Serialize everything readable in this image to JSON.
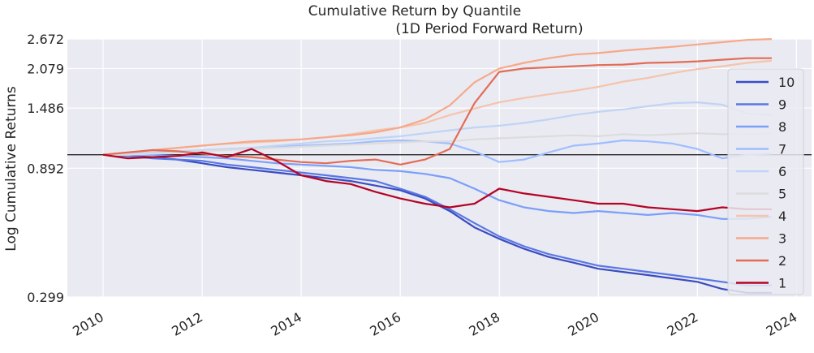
{
  "chart_data": {
    "type": "line",
    "title": "Cumulative Return by Quantile",
    "subtitle": "(1D Period Forward Return)",
    "ylabel": "Log Cumulative Returns",
    "xlabel": "",
    "y_scale": "log",
    "ylim": [
      0.299,
      2.672
    ],
    "xlim": [
      2010.0,
      2023.6
    ],
    "y_ticks": [
      "2.672",
      "2.079",
      "1.486",
      "0.892",
      "0.299"
    ],
    "y_tick_values": [
      2.672,
      2.079,
      1.486,
      0.892,
      0.299
    ],
    "x_ticks": [
      "2010",
      "2012",
      "2014",
      "2016",
      "2018",
      "2020",
      "2022",
      "2024"
    ],
    "x_tick_values": [
      2010,
      2012,
      2014,
      2016,
      2018,
      2020,
      2022,
      2024
    ],
    "hline": 1.0,
    "grid": true,
    "legend_position": "right",
    "background": "#eaeaf2",
    "series": [
      {
        "name": "10",
        "color": "#3b4cc0",
        "x": [
          2010.0,
          2010.5,
          2011.0,
          2011.5,
          2012.0,
          2012.5,
          2013.0,
          2013.5,
          2014.0,
          2014.5,
          2015.0,
          2015.5,
          2016.0,
          2016.5,
          2017.0,
          2017.5,
          2018.0,
          2018.5,
          2019.0,
          2019.5,
          2020.0,
          2020.5,
          2021.0,
          2021.5,
          2022.0,
          2022.5,
          2023.0,
          2023.5
        ],
        "y": [
          1.0,
          0.99,
          0.98,
          0.96,
          0.93,
          0.9,
          0.88,
          0.86,
          0.84,
          0.82,
          0.8,
          0.77,
          0.74,
          0.69,
          0.62,
          0.54,
          0.49,
          0.45,
          0.42,
          0.4,
          0.38,
          0.37,
          0.36,
          0.35,
          0.34,
          0.32,
          0.31,
          0.31
        ]
      },
      {
        "name": "9",
        "color": "#5a78e4",
        "x": [
          2010.0,
          2010.5,
          2011.0,
          2011.5,
          2012.0,
          2012.5,
          2013.0,
          2013.5,
          2014.0,
          2014.5,
          2015.0,
          2015.5,
          2016.0,
          2016.5,
          2017.0,
          2017.5,
          2018.0,
          2018.5,
          2019.0,
          2019.5,
          2020.0,
          2020.5,
          2021.0,
          2021.5,
          2022.0,
          2022.5,
          2023.0,
          2023.5
        ],
        "y": [
          1.0,
          0.99,
          0.97,
          0.96,
          0.95,
          0.92,
          0.9,
          0.88,
          0.86,
          0.84,
          0.82,
          0.8,
          0.75,
          0.7,
          0.63,
          0.56,
          0.5,
          0.46,
          0.43,
          0.41,
          0.39,
          0.38,
          0.37,
          0.36,
          0.35,
          0.34,
          0.33,
          0.33
        ]
      },
      {
        "name": "8",
        "color": "#7b9ff9",
        "x": [
          2010.0,
          2010.5,
          2011.0,
          2011.5,
          2012.0,
          2012.5,
          2013.0,
          2013.5,
          2014.0,
          2014.5,
          2015.0,
          2015.5,
          2016.0,
          2016.5,
          2017.0,
          2017.5,
          2018.0,
          2018.5,
          2019.0,
          2019.5,
          2020.0,
          2020.5,
          2021.0,
          2021.5,
          2022.0,
          2022.5,
          2023.0,
          2023.5
        ],
        "y": [
          1.0,
          1.0,
          1.0,
          0.99,
          0.98,
          0.97,
          0.95,
          0.93,
          0.92,
          0.91,
          0.9,
          0.88,
          0.87,
          0.85,
          0.82,
          0.75,
          0.68,
          0.64,
          0.62,
          0.61,
          0.62,
          0.61,
          0.6,
          0.61,
          0.6,
          0.58,
          0.58,
          0.59
        ]
      },
      {
        "name": "7",
        "color": "#9ebeff",
        "x": [
          2010.0,
          2010.5,
          2011.0,
          2011.5,
          2012.0,
          2012.5,
          2013.0,
          2013.5,
          2014.0,
          2014.5,
          2015.0,
          2015.5,
          2016.0,
          2016.5,
          2017.0,
          2017.5,
          2018.0,
          2018.5,
          2019.0,
          2019.5,
          2020.0,
          2020.5,
          2021.0,
          2021.5,
          2022.0,
          2022.5,
          2023.0,
          2023.5
        ],
        "y": [
          1.0,
          1.0,
          1.01,
          1.02,
          1.03,
          1.05,
          1.06,
          1.07,
          1.08,
          1.09,
          1.1,
          1.12,
          1.13,
          1.12,
          1.1,
          1.03,
          0.94,
          0.96,
          1.02,
          1.08,
          1.1,
          1.13,
          1.12,
          1.1,
          1.05,
          0.97,
          1.0,
          1.01
        ]
      },
      {
        "name": "6",
        "color": "#c0d4f5",
        "x": [
          2010.0,
          2010.5,
          2011.0,
          2011.5,
          2012.0,
          2012.5,
          2013.0,
          2013.5,
          2014.0,
          2014.5,
          2015.0,
          2015.5,
          2016.0,
          2016.5,
          2017.0,
          2017.5,
          2018.0,
          2018.5,
          2019.0,
          2019.5,
          2020.0,
          2020.5,
          2021.0,
          2021.5,
          2022.0,
          2022.5,
          2023.0,
          2023.5
        ],
        "y": [
          1.0,
          1.01,
          1.02,
          1.03,
          1.04,
          1.05,
          1.06,
          1.08,
          1.1,
          1.12,
          1.13,
          1.15,
          1.17,
          1.2,
          1.23,
          1.26,
          1.28,
          1.31,
          1.35,
          1.4,
          1.44,
          1.47,
          1.51,
          1.55,
          1.56,
          1.53,
          1.42,
          1.4
        ]
      },
      {
        "name": "5",
        "color": "#dddcdc",
        "x": [
          2010.0,
          2010.5,
          2011.0,
          2011.5,
          2012.0,
          2012.5,
          2013.0,
          2013.5,
          2014.0,
          2014.5,
          2015.0,
          2015.5,
          2016.0,
          2016.5,
          2017.0,
          2017.5,
          2018.0,
          2018.5,
          2019.0,
          2019.5,
          2020.0,
          2020.5,
          2021.0,
          2021.5,
          2022.0,
          2022.5,
          2023.0,
          2023.5
        ],
        "y": [
          1.0,
          1.0,
          1.01,
          1.02,
          1.03,
          1.04,
          1.05,
          1.06,
          1.07,
          1.08,
          1.09,
          1.1,
          1.11,
          1.12,
          1.12,
          1.14,
          1.15,
          1.16,
          1.17,
          1.18,
          1.17,
          1.19,
          1.18,
          1.19,
          1.2,
          1.19,
          1.19,
          1.2
        ]
      },
      {
        "name": "4",
        "color": "#f5c4ac",
        "x": [
          2010.0,
          2010.5,
          2011.0,
          2011.5,
          2012.0,
          2012.5,
          2013.0,
          2013.5,
          2014.0,
          2014.5,
          2015.0,
          2015.5,
          2016.0,
          2016.5,
          2017.0,
          2017.5,
          2018.0,
          2018.5,
          2019.0,
          2019.5,
          2020.0,
          2020.5,
          2021.0,
          2021.5,
          2022.0,
          2022.5,
          2023.0,
          2023.5
        ],
        "y": [
          1.0,
          1.02,
          1.04,
          1.06,
          1.08,
          1.1,
          1.11,
          1.12,
          1.14,
          1.16,
          1.19,
          1.23,
          1.26,
          1.31,
          1.4,
          1.48,
          1.56,
          1.62,
          1.67,
          1.72,
          1.78,
          1.86,
          1.92,
          2.0,
          2.07,
          2.12,
          2.18,
          2.22
        ]
      },
      {
        "name": "3",
        "color": "#f7a889",
        "x": [
          2010.0,
          2010.5,
          2011.0,
          2011.5,
          2012.0,
          2012.5,
          2013.0,
          2013.5,
          2014.0,
          2014.5,
          2015.0,
          2015.5,
          2016.0,
          2016.5,
          2017.0,
          2017.5,
          2018.0,
          2018.5,
          2019.0,
          2019.5,
          2020.0,
          2020.5,
          2021.0,
          2021.5,
          2022.0,
          2022.5,
          2023.0,
          2023.5
        ],
        "y": [
          1.0,
          1.02,
          1.04,
          1.06,
          1.08,
          1.1,
          1.12,
          1.13,
          1.14,
          1.16,
          1.18,
          1.21,
          1.26,
          1.35,
          1.52,
          1.85,
          2.08,
          2.18,
          2.27,
          2.34,
          2.37,
          2.42,
          2.46,
          2.5,
          2.55,
          2.6,
          2.65,
          2.67
        ]
      },
      {
        "name": "2",
        "color": "#e36c55",
        "x": [
          2010.0,
          2010.5,
          2011.0,
          2011.5,
          2012.0,
          2012.5,
          2013.0,
          2013.5,
          2014.0,
          2014.5,
          2015.0,
          2015.5,
          2016.0,
          2016.5,
          2017.0,
          2017.5,
          2018.0,
          2018.5,
          2019.0,
          2019.5,
          2020.0,
          2020.5,
          2021.0,
          2021.5,
          2022.0,
          2022.5,
          2023.0,
          2023.5
        ],
        "y": [
          1.0,
          1.02,
          1.04,
          1.03,
          1.01,
          0.99,
          0.98,
          0.96,
          0.94,
          0.93,
          0.95,
          0.96,
          0.92,
          0.96,
          1.05,
          1.55,
          2.02,
          2.08,
          2.1,
          2.12,
          2.14,
          2.15,
          2.18,
          2.19,
          2.21,
          2.24,
          2.27,
          2.27
        ]
      },
      {
        "name": "1",
        "color": "#b40426",
        "x": [
          2010.0,
          2010.5,
          2011.0,
          2011.5,
          2012.0,
          2012.5,
          2013.0,
          2013.5,
          2014.0,
          2014.5,
          2015.0,
          2015.5,
          2016.0,
          2016.5,
          2017.0,
          2017.5,
          2018.0,
          2018.5,
          2019.0,
          2019.5,
          2020.0,
          2020.5,
          2021.0,
          2021.5,
          2022.0,
          2022.5,
          2023.0,
          2023.5
        ],
        "y": [
          1.0,
          0.97,
          0.98,
          0.99,
          1.02,
          0.98,
          1.05,
          0.95,
          0.84,
          0.8,
          0.78,
          0.73,
          0.69,
          0.66,
          0.64,
          0.66,
          0.75,
          0.72,
          0.7,
          0.68,
          0.66,
          0.66,
          0.64,
          0.63,
          0.62,
          0.64,
          0.63,
          0.63
        ]
      }
    ]
  }
}
